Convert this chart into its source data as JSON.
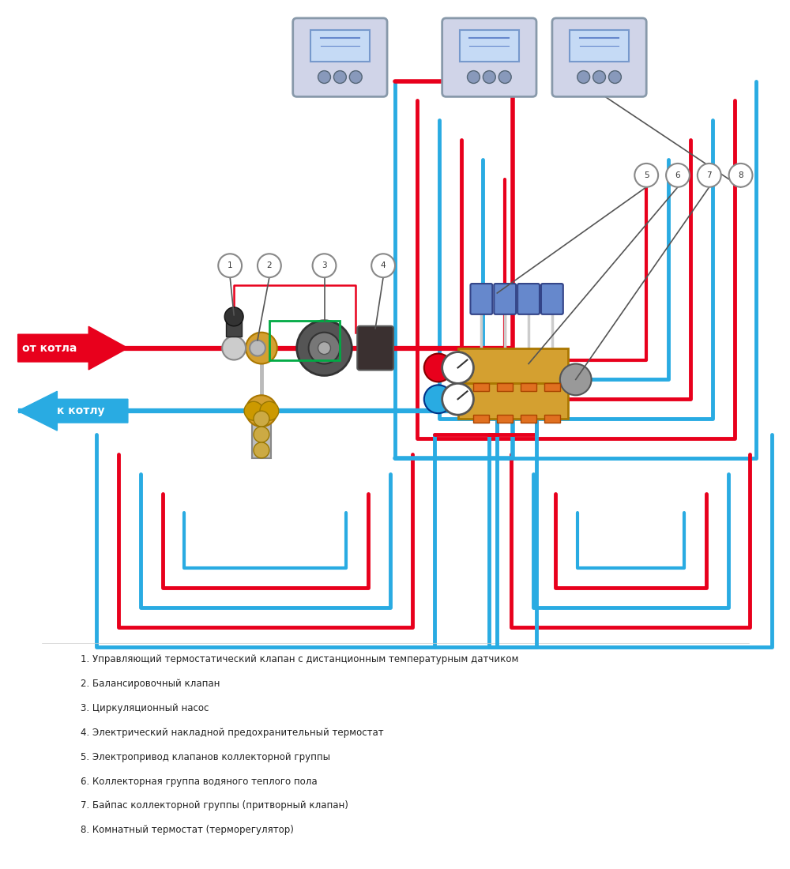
{
  "bg_color": "#ffffff",
  "red_color": "#e8001c",
  "blue_color": "#29abe2",
  "green_color": "#00aa44",
  "gold_color": "#c8a020",
  "gray_color": "#aaaaaa",
  "dark_color": "#333333",
  "label_color": "#222222",
  "legend_items": [
    "1. Управляющий термостатический клапан с дистанционным температурным датчиком",
    "2. Балансировочный клапан",
    "3. Циркуляционный насос",
    "4. Электрический накладной предохранительный термостат",
    "5. Электропривод клапанов коллекторной группы",
    "6. Коллекторная группа водяного теплого пола",
    "7. Байпас коллекторной группы (притворный клапан)",
    "8. Комнатный термостат (терморегулятор)"
  ],
  "label_from_boiler": "от котла",
  "label_to_boiler": "к котлу"
}
